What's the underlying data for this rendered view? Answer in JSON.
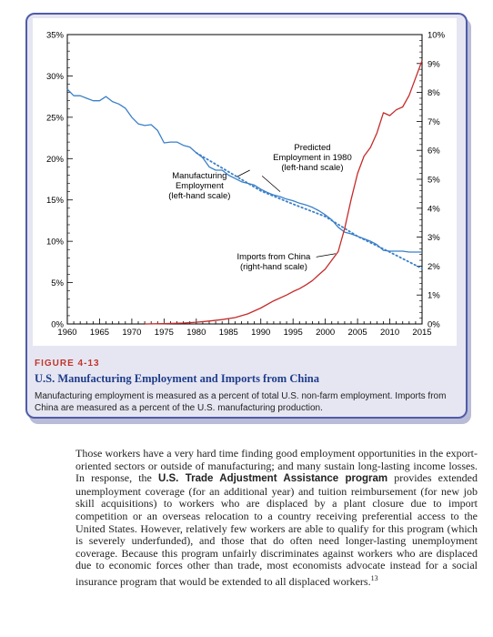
{
  "figure": {
    "label": "FIGURE 4-13",
    "title": "U.S. Manufacturing Employment and Imports from China",
    "caption": "Manufacturing employment is measured as a percent of total U.S. non-farm employment. Imports from China are measured as a percent of the U.S. manufacturing production."
  },
  "chart_data": {
    "type": "line",
    "title": "U.S. Manufacturing Employment and Imports from China",
    "xlim": [
      1960,
      2015
    ],
    "x_ticks": [
      "1960",
      "1965",
      "1970",
      "1975",
      "1980",
      "1985",
      "1990",
      "1995",
      "2000",
      "2005",
      "2010",
      "2015"
    ],
    "ylim_left": [
      0,
      35
    ],
    "ylim_right": [
      0,
      10
    ],
    "y_ticks_left": [
      "0%",
      "5%",
      "10%",
      "15%",
      "20%",
      "25%",
      "30%",
      "35%"
    ],
    "y_ticks_right": [
      "0%",
      "1%",
      "2%",
      "3%",
      "4%",
      "5%",
      "6%",
      "7%",
      "8%",
      "9%",
      "10%"
    ],
    "grid": false,
    "series": [
      {
        "name": "Manufacturing Employment (left-hand scale)",
        "axis": "left",
        "color": "#3a7fc9",
        "style": "solid",
        "x": [
          1960,
          1961,
          1962,
          1963,
          1964,
          1965,
          1966,
          1967,
          1968,
          1969,
          1970,
          1971,
          1972,
          1973,
          1974,
          1975,
          1976,
          1977,
          1978,
          1979,
          1980,
          1981,
          1982,
          1983,
          1984,
          1985,
          1986,
          1987,
          1988,
          1989,
          1990,
          1991,
          1992,
          1993,
          1994,
          1995,
          1996,
          1997,
          1998,
          1999,
          2000,
          2001,
          2002,
          2003,
          2004,
          2005,
          2006,
          2007,
          2008,
          2009,
          2010,
          2011,
          2012,
          2013,
          2014,
          2015
        ],
        "values": [
          28.4,
          27.6,
          27.6,
          27.3,
          27.0,
          27.0,
          27.5,
          26.9,
          26.6,
          26.1,
          25.0,
          24.2,
          24.0,
          24.1,
          23.4,
          21.9,
          22.0,
          22.0,
          21.6,
          21.4,
          20.7,
          20.1,
          19.0,
          18.6,
          18.6,
          18.0,
          17.6,
          17.2,
          17.0,
          16.8,
          16.3,
          15.9,
          15.6,
          15.4,
          15.1,
          14.9,
          14.6,
          14.4,
          14.1,
          13.7,
          13.2,
          12.6,
          11.7,
          11.1,
          10.9,
          10.6,
          10.3,
          10.0,
          9.6,
          8.9,
          8.8,
          8.8,
          8.8,
          8.7,
          8.7,
          8.7
        ]
      },
      {
        "name": "Predicted Employment in 1980 (left-hand scale)",
        "axis": "left",
        "color": "#3a7fc9",
        "style": "dotted",
        "x": [
          1980,
          1985,
          1990,
          1995,
          2000,
          2005,
          2010,
          2015
        ],
        "values": [
          20.7,
          18.4,
          16.1,
          14.5,
          13.0,
          10.6,
          8.7,
          6.7
        ]
      },
      {
        "name": "Imports from China (right-hand scale)",
        "axis": "right",
        "color": "#c62a2a",
        "style": "solid",
        "x": [
          1972,
          1975,
          1978,
          1980,
          1982,
          1984,
          1986,
          1988,
          1990,
          1992,
          1994,
          1995,
          1996,
          1997,
          1998,
          1999,
          2000,
          2001,
          2002,
          2003,
          2004,
          2005,
          2006,
          2007,
          2008,
          2009,
          2010,
          2011,
          2012,
          2013,
          2014,
          2015
        ],
        "values": [
          0.0,
          0.01,
          0.03,
          0.06,
          0.1,
          0.15,
          0.22,
          0.35,
          0.55,
          0.8,
          1.0,
          1.12,
          1.22,
          1.35,
          1.5,
          1.7,
          1.9,
          2.2,
          2.5,
          3.3,
          4.3,
          5.2,
          5.8,
          6.1,
          6.6,
          7.3,
          7.2,
          7.4,
          7.5,
          7.9,
          8.5,
          9.1
        ]
      }
    ],
    "annotations": [
      {
        "text": "Predicted",
        "anchor": "predicted"
      },
      {
        "text": "Employment in 1980",
        "anchor": "predicted"
      },
      {
        "text": "(left-hand scale)",
        "anchor": "predicted"
      },
      {
        "text": "Manufacturing",
        "anchor": "manufacturing"
      },
      {
        "text": "Employment",
        "anchor": "manufacturing"
      },
      {
        "text": "(left-hand scale)",
        "anchor": "manufacturing"
      },
      {
        "text": "Imports from China",
        "anchor": "imports"
      },
      {
        "text": "(right-hand scale)",
        "anchor": "imports"
      }
    ]
  },
  "body": {
    "p1": "Those workers have a very hard time finding good employment opportunities in the export-oriented sectors or outside of manufacturing; and many sustain long-lasting income losses. In response, the ",
    "bold": "U.S. Trade Adjustment Assistance program",
    "p2": " provides extended unemployment coverage (for an additional year) and tuition reimbursement (for new job skill acquisitions) to workers who are displaced by a plant closure due to import competition or an overseas relocation to a country receiving preferential access to the United States. However, relatively few workers are able to qualify for this program (which is severely underfunded), and those that do often need longer-lasting unemployment coverage. Because this program unfairly discriminates against workers who are displaced due to economic forces other than trade, most economists advocate instead for a social insurance program that would be extended to all displaced workers.",
    "footnote": "13"
  }
}
